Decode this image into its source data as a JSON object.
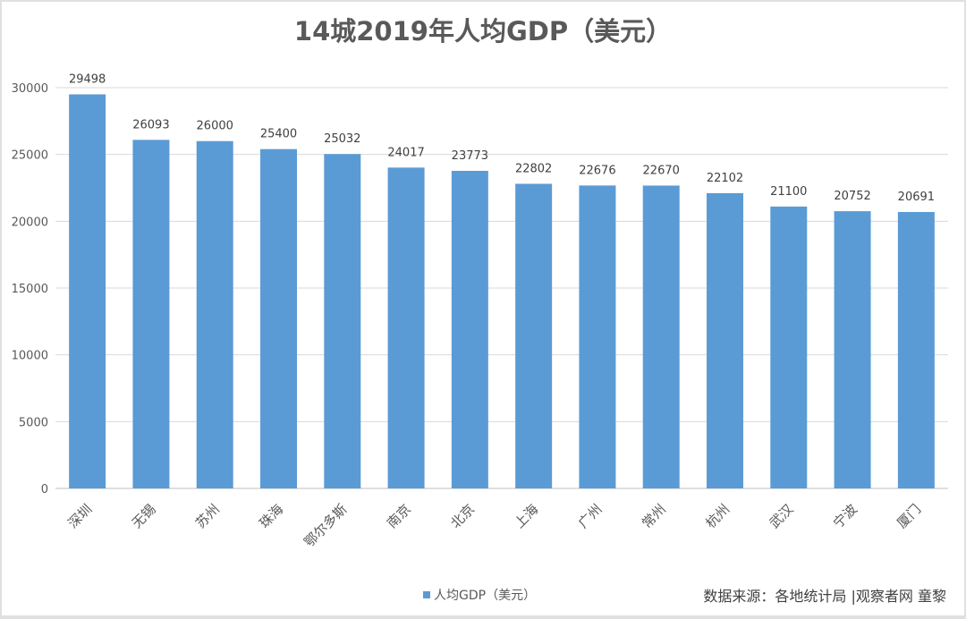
{
  "chart_data": {
    "type": "bar",
    "title": "14城2019年人均GDP（美元）",
    "categories": [
      "深圳",
      "无锡",
      "苏州",
      "珠海",
      "鄂尔多斯",
      "南京",
      "北京",
      "上海",
      "广州",
      "常州",
      "杭州",
      "武汉",
      "宁波",
      "厦门"
    ],
    "series": [
      {
        "name": "人均GDP（美元）",
        "values": [
          29498,
          26093,
          26000,
          25400,
          25032,
          24017,
          23773,
          22802,
          22676,
          22670,
          22102,
          21100,
          20752,
          20691
        ],
        "color": "#5b9bd5"
      }
    ],
    "ylim": [
      0,
      30000
    ],
    "yticks": [
      0,
      5000,
      10000,
      15000,
      20000,
      25000,
      30000
    ],
    "grid": true,
    "legend": "bottom",
    "data_labels": true
  },
  "source": "数据来源：各地统计局 |观察者网 童黎"
}
